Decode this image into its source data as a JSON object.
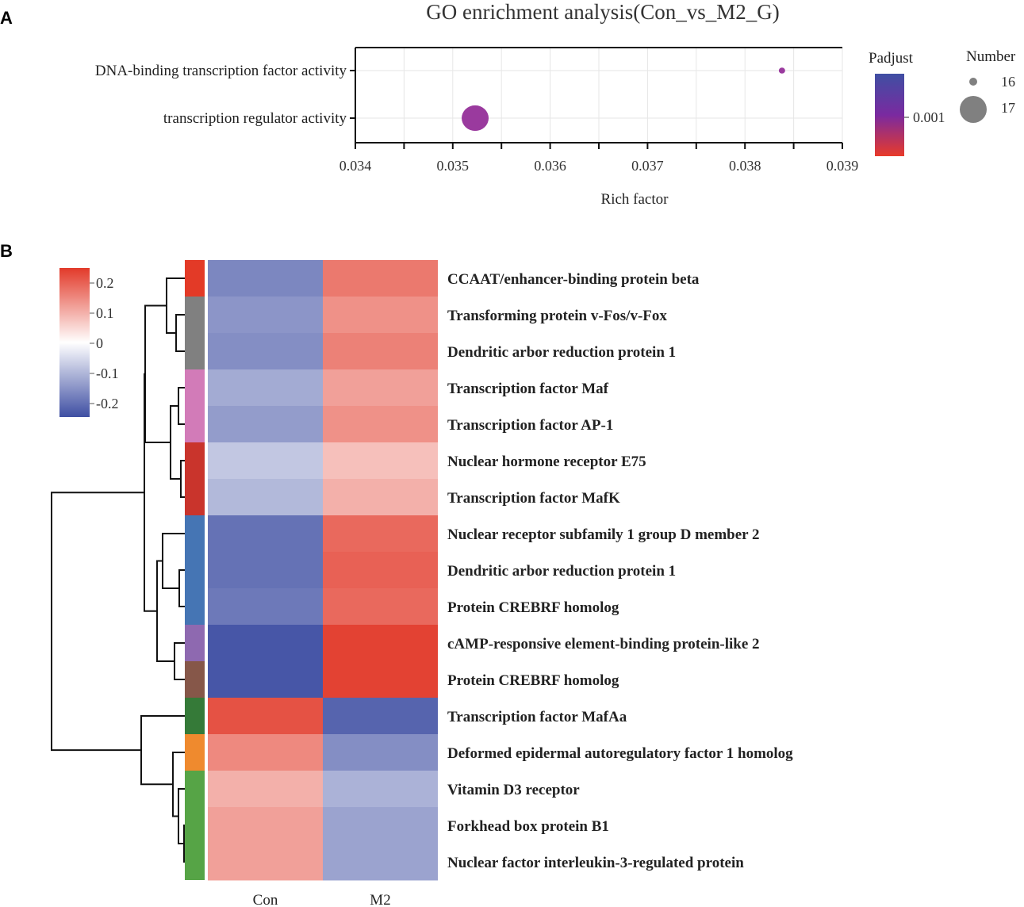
{
  "chart_data": [
    {
      "type": "scatter",
      "panel_label": "A",
      "title": "GO enrichment analysis(Con_vs_M2_G)",
      "xlabel": "Rich factor",
      "ylabel": "",
      "xlim": [
        0.034,
        0.039
      ],
      "xticks": [
        "0.034",
        "0.035",
        "0.036",
        "0.037",
        "0.038",
        "0.039"
      ],
      "grid": true,
      "categories": [
        "DNA-binding transcription factor activity",
        "transcription regulator activity"
      ],
      "points": [
        {
          "term": "DNA-binding transcription factor activity",
          "rich_factor": 0.03838,
          "number": 16,
          "padjust": 0.0012
        },
        {
          "term": "transcription regulator activity",
          "rich_factor": 0.03523,
          "number": 17,
          "padjust": 0.0011
        }
      ],
      "color_legend": {
        "title": "Padjust",
        "tick": "0.001",
        "colors": [
          "#3f4fa3",
          "#7a2aa0",
          "#e83a2a"
        ]
      },
      "size_legend": {
        "title": "Number",
        "values": [
          "16",
          "17"
        ]
      },
      "legend_position": "right"
    },
    {
      "type": "heatmap",
      "panel_label": "B",
      "columns": [
        "Con",
        "M2"
      ],
      "color_scale": {
        "ticks": [
          "0.2",
          "0.1",
          "0",
          "-0.1",
          "-0.2"
        ],
        "range": [
          -0.25,
          0.25
        ],
        "low": "#3f4fa3",
        "mid": "#ffffff",
        "high": "#e23a2a"
      },
      "rows": [
        {
          "label": "CCAAT/enhancer-binding protein beta",
          "values": [
            -0.17,
            0.17
          ],
          "cluster_color": "#e33a27"
        },
        {
          "label": "Transforming protein v-Fos/v-Fox",
          "values": [
            -0.15,
            0.14
          ],
          "cluster_color": "#808080"
        },
        {
          "label": "Dendritic arbor reduction protein 1",
          "values": [
            -0.16,
            0.16
          ],
          "cluster_color": "#808080"
        },
        {
          "label": "Transcription factor Maf",
          "values": [
            -0.12,
            0.12
          ],
          "cluster_color": "#d27bb8"
        },
        {
          "label": "Transcription factor AP-1",
          "values": [
            -0.14,
            0.14
          ],
          "cluster_color": "#d27bb8"
        },
        {
          "label": "Nuclear hormone receptor E75",
          "values": [
            -0.08,
            0.08
          ],
          "cluster_color": "#c9342c"
        },
        {
          "label": "Transcription factor MafK",
          "values": [
            -0.1,
            0.1
          ],
          "cluster_color": "#c9342c"
        },
        {
          "label": "Nuclear receptor subfamily 1 group D member 2",
          "values": [
            -0.2,
            0.19
          ],
          "cluster_color": "#4575b4"
        },
        {
          "label": "Dendritic arbor reduction protein 1",
          "values": [
            -0.2,
            0.2
          ],
          "cluster_color": "#4575b4"
        },
        {
          "label": "Protein CREBRF homolog",
          "values": [
            -0.19,
            0.19
          ],
          "cluster_color": "#4575b4"
        },
        {
          "label": "cAMP-responsive element-binding protein-like 2",
          "values": [
            -0.24,
            0.24
          ],
          "cluster_color": "#8e69b0"
        },
        {
          "label": "Protein CREBRF homolog",
          "values": [
            -0.24,
            0.24
          ],
          "cluster_color": "#865749"
        },
        {
          "label": "Transcription factor MafAa",
          "values": [
            0.22,
            -0.22
          ],
          "cluster_color": "#357a38"
        },
        {
          "label": "Deformed epidermal autoregulatory factor 1 homolog",
          "values": [
            0.15,
            -0.16
          ],
          "cluster_color": "#ef8a2e"
        },
        {
          "label": "Vitamin D3 receptor",
          "values": [
            0.1,
            -0.11
          ],
          "cluster_color": "#56a446"
        },
        {
          "label": "Forkhead box protein B1",
          "values": [
            0.12,
            -0.13
          ],
          "cluster_color": "#56a446"
        },
        {
          "label": "Nuclear factor interleukin-3-regulated protein",
          "values": [
            0.12,
            -0.13
          ],
          "cluster_color": "#56a446"
        }
      ]
    }
  ]
}
